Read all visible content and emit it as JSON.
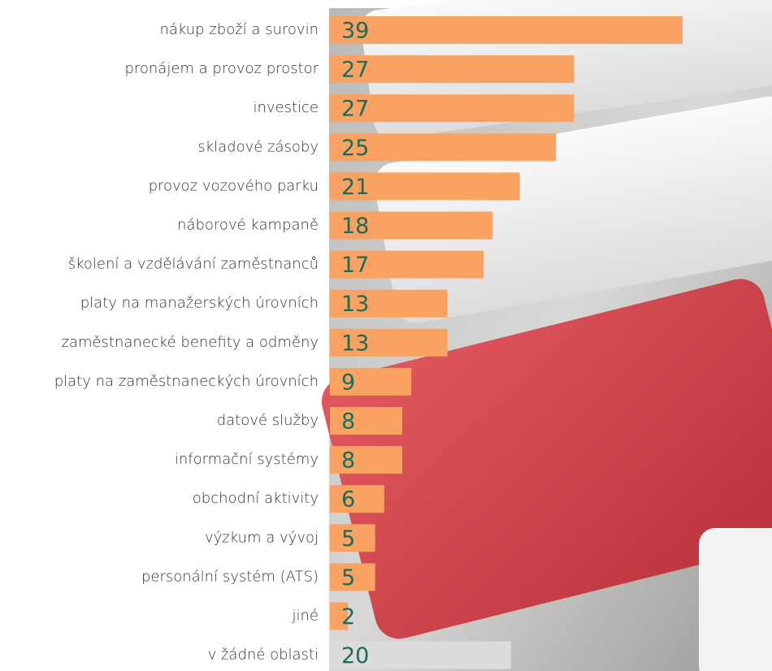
{
  "chart_data": {
    "type": "bar",
    "orientation": "horizontal",
    "categories": [
      "nákup zboží a surovin",
      "pronájem a provoz prostor",
      "investice",
      "skladové zásoby",
      "provoz vozového parku",
      "náborové kampaně",
      "školení a vzdělávání zaměstnanců",
      "platy na manažerských úrovních",
      "zaměstnanecké benefity a odměny",
      "platy na zaměstnaneckých úrovních",
      "datové služby",
      "informační systémy",
      "obchodní aktivity",
      "výzkum a vývoj",
      "personální systém (ATS)",
      "jiné",
      "v žádné oblasti"
    ],
    "values": [
      39,
      27,
      27,
      25,
      21,
      18,
      17,
      13,
      13,
      9,
      8,
      8,
      6,
      5,
      5,
      2,
      20
    ],
    "colors": [
      "#f9a262",
      "#f9a262",
      "#f9a262",
      "#f9a262",
      "#f9a262",
      "#f9a262",
      "#f9a262",
      "#f9a262",
      "#f9a262",
      "#f9a262",
      "#f9a262",
      "#f9a262",
      "#f9a262",
      "#f9a262",
      "#f9a262",
      "#f9a262",
      "#dcdcdc"
    ],
    "value_label_color": "#1b6b5b"
  }
}
